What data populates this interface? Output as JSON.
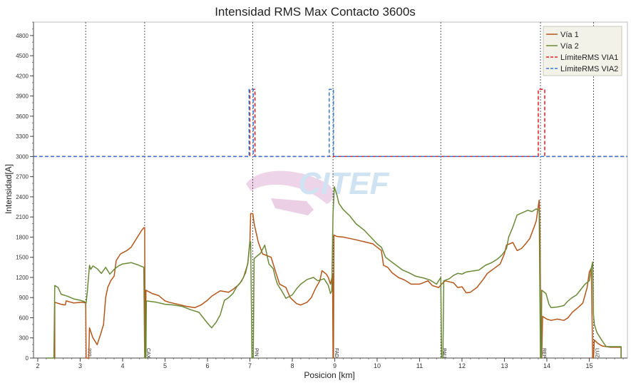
{
  "chart_data": {
    "type": "line",
    "title": "Intensidad RMS Max Contacto 3600s",
    "xlabel": "Posicion [km]",
    "ylabel": "Intensidad[A]",
    "xlim": [
      1.9,
      15.9
    ],
    "ylim": [
      0,
      5000
    ],
    "x_ticks": [
      2,
      3,
      4,
      5,
      6,
      7,
      8,
      9,
      10,
      11,
      12,
      13,
      14,
      15
    ],
    "y_ticks": [
      0,
      300,
      600,
      900,
      1200,
      1500,
      1800,
      2100,
      2400,
      2700,
      3000,
      3300,
      3600,
      3900,
      4200,
      4500,
      4800
    ],
    "grid": false,
    "legend_position": "top-right",
    "watermark": "CITEF",
    "stations": [
      {
        "name": "???",
        "x": 3.13
      },
      {
        "name": "CAX",
        "x": 4.52
      },
      {
        "name": "PIN",
        "x": 7.07
      },
      {
        "name": "FAD",
        "x": 8.96
      },
      {
        "name": "PAU",
        "x": 11.5
      },
      {
        "name": "REP",
        "x": 13.85
      },
      {
        "name": "LUZ",
        "x": 15.1
      }
    ],
    "series": [
      {
        "name": "Vía 1",
        "color": "#b5561a",
        "style": "solid",
        "points": [
          [
            2.4,
            0
          ],
          [
            2.4,
            830
          ],
          [
            2.55,
            800
          ],
          [
            2.65,
            790
          ],
          [
            2.67,
            850
          ],
          [
            2.85,
            820
          ],
          [
            3.05,
            830
          ],
          [
            3.13,
            820
          ],
          [
            3.14,
            0
          ],
          [
            3.2,
            0
          ],
          [
            3.22,
            450
          ],
          [
            3.3,
            300
          ],
          [
            3.4,
            200
          ],
          [
            3.48,
            350
          ],
          [
            3.55,
            500
          ],
          [
            3.6,
            900
          ],
          [
            3.65,
            1050
          ],
          [
            3.72,
            1150
          ],
          [
            3.8,
            1220
          ],
          [
            3.85,
            1450
          ],
          [
            3.95,
            1550
          ],
          [
            4.1,
            1600
          ],
          [
            4.2,
            1650
          ],
          [
            4.35,
            1800
          ],
          [
            4.45,
            1900
          ],
          [
            4.5,
            1940
          ],
          [
            4.52,
            1940
          ],
          [
            4.53,
            0
          ],
          [
            4.54,
            0
          ],
          [
            4.55,
            1010
          ],
          [
            4.7,
            960
          ],
          [
            4.85,
            930
          ],
          [
            5.0,
            850
          ],
          [
            5.1,
            830
          ],
          [
            5.3,
            800
          ],
          [
            5.5,
            770
          ],
          [
            5.7,
            750
          ],
          [
            5.85,
            790
          ],
          [
            6.0,
            860
          ],
          [
            6.1,
            920
          ],
          [
            6.3,
            1000
          ],
          [
            6.5,
            980
          ],
          [
            6.6,
            1020
          ],
          [
            6.75,
            1100
          ],
          [
            6.85,
            1200
          ],
          [
            6.95,
            1400
          ],
          [
            7.0,
            1700
          ],
          [
            7.02,
            2150
          ],
          [
            7.07,
            2150
          ],
          [
            7.1,
            2000
          ],
          [
            7.15,
            1860
          ],
          [
            7.2,
            1720
          ],
          [
            7.3,
            1550
          ],
          [
            7.5,
            1500
          ],
          [
            7.6,
            1300
          ],
          [
            7.7,
            1100
          ],
          [
            7.85,
            1050
          ],
          [
            7.95,
            900
          ],
          [
            8.1,
            810
          ],
          [
            8.2,
            790
          ],
          [
            8.35,
            830
          ],
          [
            8.45,
            900
          ],
          [
            8.55,
            1040
          ],
          [
            8.65,
            1150
          ],
          [
            8.7,
            1300
          ],
          [
            8.8,
            1250
          ],
          [
            8.85,
            1200
          ],
          [
            8.9,
            1100
          ],
          [
            8.95,
            1240
          ],
          [
            8.96,
            0
          ],
          [
            8.97,
            0
          ],
          [
            8.98,
            1830
          ],
          [
            9.05,
            1810
          ],
          [
            9.2,
            1800
          ],
          [
            9.35,
            1780
          ],
          [
            9.5,
            1760
          ],
          [
            9.7,
            1730
          ],
          [
            9.9,
            1700
          ],
          [
            10.0,
            1650
          ],
          [
            10.1,
            1600
          ],
          [
            10.15,
            1380
          ],
          [
            10.25,
            1350
          ],
          [
            10.35,
            1270
          ],
          [
            10.5,
            1200
          ],
          [
            10.65,
            1160
          ],
          [
            10.8,
            1100
          ],
          [
            11.0,
            1100
          ],
          [
            11.2,
            1150
          ],
          [
            11.3,
            1080
          ],
          [
            11.45,
            1050
          ],
          [
            11.52,
            1100
          ],
          [
            11.6,
            1150
          ],
          [
            11.8,
            1120
          ],
          [
            11.9,
            1050
          ],
          [
            12.0,
            1060
          ],
          [
            12.1,
            970
          ],
          [
            12.2,
            980
          ],
          [
            12.35,
            1050
          ],
          [
            12.5,
            1170
          ],
          [
            12.6,
            1260
          ],
          [
            12.75,
            1330
          ],
          [
            12.9,
            1400
          ],
          [
            13.0,
            1550
          ],
          [
            13.05,
            1680
          ],
          [
            13.2,
            1720
          ],
          [
            13.3,
            1600
          ],
          [
            13.4,
            1630
          ],
          [
            13.5,
            1700
          ],
          [
            13.6,
            1780
          ],
          [
            13.7,
            1950
          ],
          [
            13.75,
            2040
          ],
          [
            13.8,
            2260
          ],
          [
            13.82,
            2350
          ],
          [
            13.84,
            1850
          ],
          [
            13.86,
            0
          ],
          [
            13.88,
            0
          ],
          [
            13.9,
            620
          ],
          [
            14.0,
            580
          ],
          [
            14.1,
            560
          ],
          [
            14.25,
            580
          ],
          [
            14.4,
            560
          ],
          [
            14.5,
            600
          ],
          [
            14.6,
            680
          ],
          [
            14.75,
            760
          ],
          [
            14.85,
            820
          ],
          [
            14.95,
            1050
          ],
          [
            15.0,
            1280
          ],
          [
            15.05,
            1340
          ],
          [
            15.08,
            0
          ],
          [
            15.1,
            0
          ],
          [
            15.12,
            270
          ],
          [
            15.2,
            220
          ],
          [
            15.3,
            180
          ],
          [
            15.5,
            160
          ],
          [
            15.75,
            160
          ],
          [
            15.75,
            0
          ]
        ]
      },
      {
        "name": "Vía 2",
        "color": "#6b8a38",
        "style": "solid",
        "points": [
          [
            2.2,
            0
          ],
          [
            2.38,
            0
          ],
          [
            2.4,
            1080
          ],
          [
            2.48,
            1050
          ],
          [
            2.55,
            950
          ],
          [
            2.7,
            920
          ],
          [
            2.85,
            880
          ],
          [
            3.0,
            860
          ],
          [
            3.1,
            840
          ],
          [
            3.14,
            820
          ],
          [
            3.17,
            1000
          ],
          [
            3.22,
            1380
          ],
          [
            3.25,
            1320
          ],
          [
            3.3,
            1370
          ],
          [
            3.4,
            1330
          ],
          [
            3.5,
            1260
          ],
          [
            3.6,
            1350
          ],
          [
            3.7,
            1250
          ],
          [
            3.8,
            1320
          ],
          [
            3.9,
            1370
          ],
          [
            4.0,
            1400
          ],
          [
            4.2,
            1420
          ],
          [
            4.35,
            1390
          ],
          [
            4.5,
            1350
          ],
          [
            4.52,
            0
          ],
          [
            4.55,
            0
          ],
          [
            4.56,
            850
          ],
          [
            4.8,
            830
          ],
          [
            5.0,
            800
          ],
          [
            5.2,
            790
          ],
          [
            5.4,
            770
          ],
          [
            5.6,
            720
          ],
          [
            5.8,
            680
          ],
          [
            5.9,
            600
          ],
          [
            6.0,
            520
          ],
          [
            6.1,
            450
          ],
          [
            6.2,
            530
          ],
          [
            6.3,
            640
          ],
          [
            6.4,
            860
          ],
          [
            6.5,
            900
          ],
          [
            6.6,
            960
          ],
          [
            6.7,
            1070
          ],
          [
            6.8,
            1140
          ],
          [
            6.9,
            1270
          ],
          [
            6.95,
            1410
          ],
          [
            7.0,
            1730
          ],
          [
            7.02,
            1730
          ],
          [
            7.05,
            0
          ],
          [
            7.08,
            0
          ],
          [
            7.1,
            1480
          ],
          [
            7.25,
            1560
          ],
          [
            7.35,
            1680
          ],
          [
            7.4,
            1540
          ],
          [
            7.45,
            1400
          ],
          [
            7.55,
            1330
          ],
          [
            7.6,
            1200
          ],
          [
            7.65,
            1100
          ],
          [
            7.75,
            1000
          ],
          [
            7.85,
            890
          ],
          [
            8.0,
            940
          ],
          [
            8.1,
            1030
          ],
          [
            8.2,
            1100
          ],
          [
            8.35,
            1170
          ],
          [
            8.5,
            1200
          ],
          [
            8.6,
            1150
          ],
          [
            8.75,
            1180
          ],
          [
            8.85,
            1080
          ],
          [
            8.9,
            960
          ],
          [
            8.93,
            1000
          ],
          [
            8.96,
            2150
          ],
          [
            8.99,
            2550
          ],
          [
            9.05,
            2430
          ],
          [
            9.1,
            2300
          ],
          [
            9.2,
            2210
          ],
          [
            9.35,
            2120
          ],
          [
            9.5,
            2000
          ],
          [
            9.7,
            1900
          ],
          [
            9.85,
            1800
          ],
          [
            10.0,
            1700
          ],
          [
            10.1,
            1650
          ],
          [
            10.2,
            1500
          ],
          [
            10.3,
            1450
          ],
          [
            10.45,
            1380
          ],
          [
            10.6,
            1310
          ],
          [
            10.75,
            1270
          ],
          [
            10.9,
            1220
          ],
          [
            11.1,
            1190
          ],
          [
            11.25,
            1160
          ],
          [
            11.4,
            1100
          ],
          [
            11.5,
            1200
          ],
          [
            11.52,
            0
          ],
          [
            11.55,
            0
          ],
          [
            11.57,
            1150
          ],
          [
            11.7,
            1180
          ],
          [
            11.8,
            1230
          ],
          [
            11.9,
            1260
          ],
          [
            12.0,
            1250
          ],
          [
            12.1,
            1280
          ],
          [
            12.3,
            1300
          ],
          [
            12.4,
            1310
          ],
          [
            12.55,
            1380
          ],
          [
            12.7,
            1420
          ],
          [
            12.85,
            1480
          ],
          [
            12.95,
            1540
          ],
          [
            13.05,
            1630
          ],
          [
            13.1,
            1800
          ],
          [
            13.2,
            1950
          ],
          [
            13.3,
            2130
          ],
          [
            13.45,
            2170
          ],
          [
            13.55,
            2200
          ],
          [
            13.65,
            2180
          ],
          [
            13.75,
            2220
          ],
          [
            13.82,
            2200
          ],
          [
            13.85,
            0
          ],
          [
            13.87,
            0
          ],
          [
            13.88,
            1010
          ],
          [
            13.98,
            960
          ],
          [
            14.05,
            800
          ],
          [
            14.1,
            750
          ],
          [
            14.25,
            760
          ],
          [
            14.4,
            780
          ],
          [
            14.5,
            850
          ],
          [
            14.6,
            900
          ],
          [
            14.7,
            940
          ],
          [
            14.8,
            1020
          ],
          [
            14.9,
            1100
          ],
          [
            15.0,
            1150
          ],
          [
            15.05,
            1340
          ],
          [
            15.08,
            1430
          ],
          [
            15.1,
            650
          ],
          [
            15.12,
            500
          ],
          [
            15.18,
            380
          ],
          [
            15.3,
            260
          ],
          [
            15.4,
            170
          ],
          [
            15.55,
            170
          ],
          [
            15.75,
            170
          ],
          [
            15.75,
            0
          ]
        ]
      },
      {
        "name": "LímiteRMS VIA1",
        "color": "#e02020",
        "style": "dashed",
        "points": [
          [
            1.9,
            3000
          ],
          [
            7.0,
            3000
          ],
          [
            7.0,
            4000
          ],
          [
            7.12,
            4000
          ],
          [
            7.12,
            3000
          ],
          [
            13.8,
            3000
          ],
          [
            13.8,
            4000
          ],
          [
            13.95,
            4000
          ],
          [
            13.95,
            3000
          ],
          [
            15.9,
            3000
          ]
        ]
      },
      {
        "name": "LímiteRMS VIA2",
        "color": "#3a78d8",
        "style": "dashed",
        "points": [
          [
            1.9,
            3000
          ],
          [
            6.98,
            3000
          ],
          [
            6.98,
            4000
          ],
          [
            7.08,
            4000
          ],
          [
            7.08,
            3000
          ],
          [
            8.87,
            3000
          ],
          [
            8.87,
            4000
          ],
          [
            8.97,
            4000
          ],
          [
            8.97,
            3000
          ],
          [
            15.9,
            3000
          ]
        ]
      }
    ]
  }
}
